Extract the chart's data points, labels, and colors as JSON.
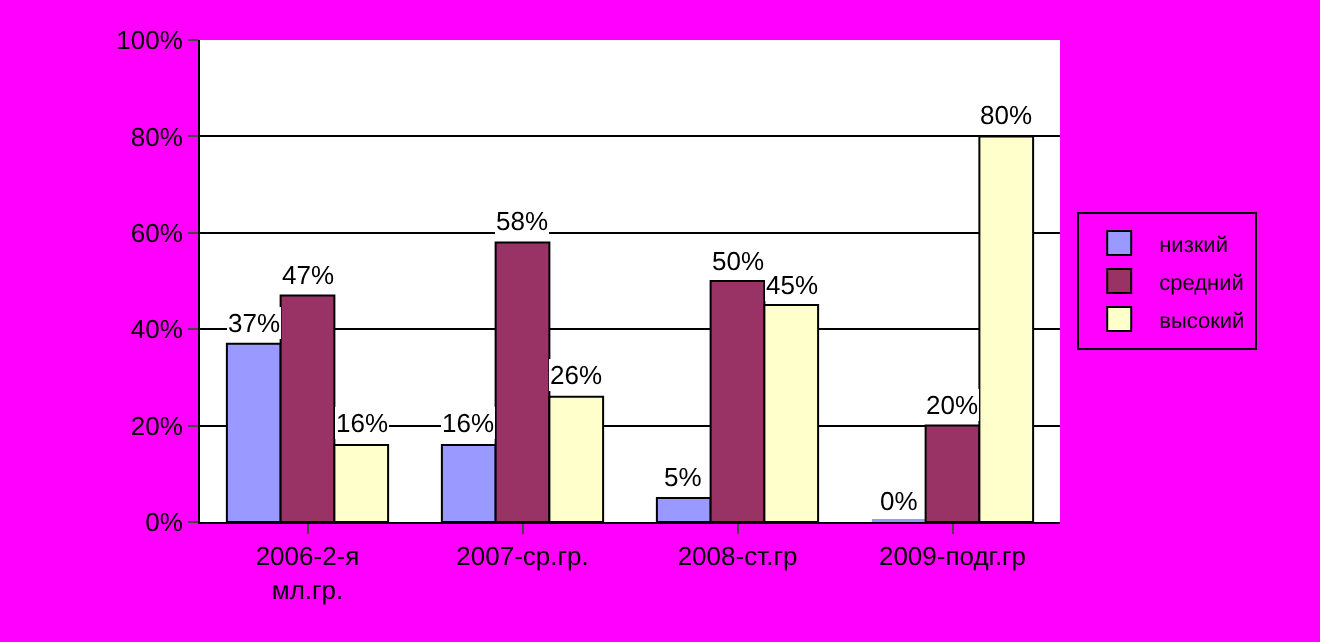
{
  "chart_data": {
    "type": "bar",
    "categories": [
      "2006-2-я мл.гр.",
      "2007-ср.гр.",
      "2008-ст.гр",
      "2009-подг.гр"
    ],
    "series": [
      {
        "name": "низкий",
        "color": "#9999ff",
        "values": [
          37,
          16,
          5,
          0
        ],
        "value_labels": [
          "37%",
          "16%",
          "5%",
          "0%"
        ]
      },
      {
        "name": "средний",
        "color": "#993366",
        "values": [
          47,
          58,
          50,
          20
        ],
        "value_labels": [
          "47%",
          "58%",
          "50%",
          "20%"
        ]
      },
      {
        "name": "высокий",
        "color": "#ffffcc",
        "values": [
          16,
          26,
          45,
          80
        ],
        "value_labels": [
          "16%",
          "26%",
          "45%",
          "80%"
        ]
      }
    ],
    "ylim": [
      0,
      100
    ],
    "yticks": [
      {
        "value": 0,
        "label": "0%"
      },
      {
        "value": 20,
        "label": "20%"
      },
      {
        "value": 40,
        "label": "40%"
      },
      {
        "value": 60,
        "label": "60%"
      },
      {
        "value": 80,
        "label": "80%"
      },
      {
        "value": 100,
        "label": "100%"
      }
    ],
    "grid": "y",
    "legend": "right"
  }
}
